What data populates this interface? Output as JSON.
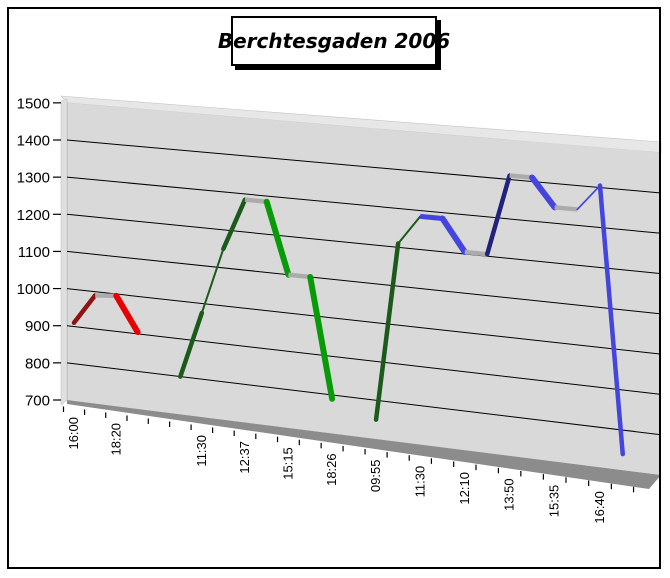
{
  "title": "Berchtesgaden 2006",
  "colors": {
    "wall": "#D9D9D9",
    "wall_lip": "#E7E7E7",
    "wall_left_face": "#DFDFDF",
    "wall_edge": "#C4C4C4",
    "floor": "#8C8C8C",
    "gridline": "#000000",
    "flat_ribbon_gray": "#ABABAB",
    "red_bright": "#E60000",
    "red_dark": "#8E1414",
    "green_bright": "#089B08",
    "green_dark": "#1C5A1C",
    "blue_bright": "#4444DE",
    "blue_dark": "#22227C"
  },
  "chart_data": {
    "type": "line",
    "style": "3d-ribbon",
    "title": "Berchtesgaden 2006",
    "xlabel": "",
    "ylabel": "",
    "ylim": [
      700,
      1500
    ],
    "ytick_interval": 100,
    "yticks": [
      700,
      800,
      900,
      1000,
      1100,
      1200,
      1300,
      1400,
      1500
    ],
    "grid": true,
    "legend": false,
    "num_slots": 26,
    "x_labels_by_slot": [
      "16:00",
      "",
      "18:20",
      "",
      "",
      "",
      "11:30",
      "",
      "12:37",
      "",
      "15:15",
      "",
      "18:26",
      "",
      "09:55",
      "",
      "11:30",
      "",
      "12:10",
      "",
      "13:50",
      "",
      "15:35",
      "",
      "16:40",
      ""
    ],
    "series": [
      {
        "name": "series-red",
        "bright": "#E60000",
        "dark": "#8E1414",
        "runs": [
          {
            "points": [
              [
                0,
                910
              ],
              [
                1,
                990
              ],
              [
                2,
                995
              ],
              [
                3,
                905
              ]
            ],
            "styles": [
              "dark",
              "flat",
              "bright"
            ]
          }
        ]
      },
      {
        "name": "series-green",
        "bright": "#089B08",
        "dark": "#1C5A1C",
        "runs": [
          {
            "points": [
              [
                5,
                800
              ],
              [
                6,
                975
              ],
              [
                7,
                1150
              ],
              [
                8,
                1285
              ],
              [
                9,
                1285
              ],
              [
                10,
                1100
              ],
              [
                11,
                1100
              ],
              [
                12,
                790
              ]
            ],
            "styles": [
              "dark",
              "thin_dark",
              "dark",
              "flat",
              "bright",
              "flat",
              "bright"
            ]
          },
          {
            "points": [
              [
                14,
                750
              ],
              [
                15,
                1210
              ],
              [
                16,
                1285
              ]
            ],
            "styles": [
              "dark",
              "thin_dark"
            ]
          }
        ]
      },
      {
        "name": "series-blue",
        "bright": "#4444DE",
        "dark": "#22227C",
        "runs": [
          {
            "points": [
              [
                16,
                1285
              ],
              [
                17,
                1285
              ],
              [
                18,
                1205
              ],
              [
                19,
                1205
              ],
              [
                20,
                1410
              ],
              [
                21,
                1410
              ],
              [
                22,
                1340
              ],
              [
                23,
                1340
              ],
              [
                24,
                1405
              ],
              [
                25,
                740
              ]
            ],
            "styles": [
              "flat_bright",
              "bright",
              "flat",
              "dark",
              "flat",
              "bright",
              "flat",
              "thin_bright",
              "drop"
            ]
          }
        ]
      }
    ]
  }
}
